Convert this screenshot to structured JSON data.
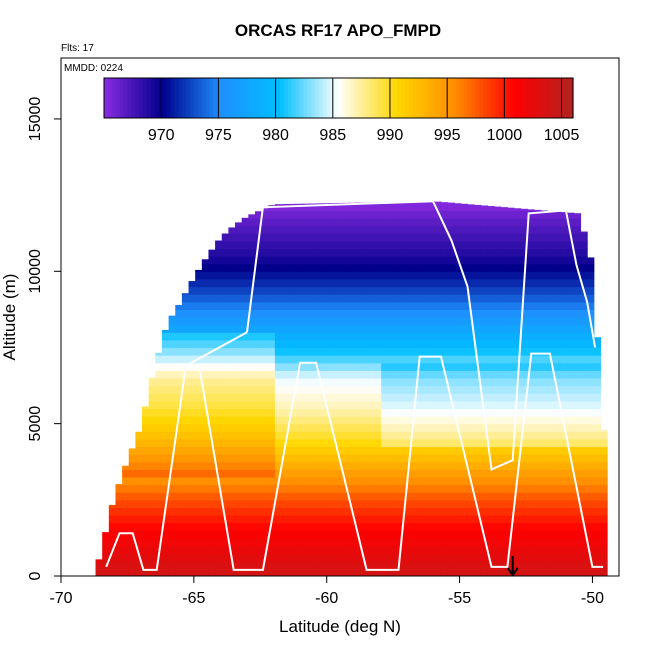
{
  "chart_data": {
    "type": "heatmap",
    "title": "ORCAS RF17 APO_FMPD",
    "note_flights": "Flts: 17",
    "note_date": "MMDD: 0224",
    "xlabel": "Latitude (deg N)",
    "ylabel": "Altitude (m)",
    "xlim": [
      -70,
      -49
    ],
    "ylim": [
      0,
      17000
    ],
    "xticks": [
      -70,
      -65,
      -60,
      -55,
      -50
    ],
    "xtick_labels": [
      "-70",
      "-65",
      "-60",
      "-55",
      "-50"
    ],
    "yticks": [
      0,
      5000,
      10000,
      15000
    ],
    "ytick_labels": [
      "0",
      "5000",
      "10000",
      "15000"
    ],
    "grid": false,
    "colorbar": {
      "placement": "top",
      "range": [
        965,
        1006
      ],
      "ticks": [
        970,
        975,
        980,
        985,
        990,
        995,
        1000,
        1005
      ],
      "tick_labels": [
        "970",
        "975",
        "980",
        "985",
        "990",
        "995",
        "1000",
        "1005"
      ],
      "colors": [
        "#8a2be2",
        "#00008b",
        "#1e90ff",
        "#00bfff",
        "#ffffff",
        "#ffd700",
        "#ff8c00",
        "#ff0000",
        "#b22222"
      ]
    },
    "field": {
      "description_keys": [
        "latitude",
        "altitude",
        "APO_FMPD"
      ],
      "profiles": [
        {
          "lat": -68.7,
          "top_alt": 100
        },
        {
          "lat": -68.0,
          "top_alt": 2600
        },
        {
          "lat": -67.5,
          "top_alt": 3800
        },
        {
          "lat": -67.0,
          "top_alt": 4900
        },
        {
          "lat": -66.5,
          "top_alt": 6800
        },
        {
          "lat": -66.0,
          "top_alt": 8300
        },
        {
          "lat": -65.5,
          "top_alt": 9000
        },
        {
          "lat": -65.0,
          "top_alt": 9800
        },
        {
          "lat": -64.5,
          "top_alt": 10500
        },
        {
          "lat": -64.0,
          "top_alt": 11100
        },
        {
          "lat": -63.5,
          "top_alt": 11500
        },
        {
          "lat": -63.0,
          "top_alt": 11800
        },
        {
          "lat": -62.0,
          "top_alt": 12200
        },
        {
          "lat": -56.0,
          "top_alt": 12300
        },
        {
          "lat": -50.5,
          "top_alt": 11900
        },
        {
          "lat": -50.0,
          "top_alt": 10200
        },
        {
          "lat": -49.6,
          "top_alt": 4800
        }
      ],
      "vertical_levels": [
        {
          "alt": 0,
          "value": 1004
        },
        {
          "alt": 1500,
          "value": 1001
        },
        {
          "alt": 2500,
          "value": 998
        },
        {
          "alt": 3500,
          "value": 994
        },
        {
          "alt": 4500,
          "value": 990
        },
        {
          "alt": 5500,
          "value": 987
        },
        {
          "alt": 6500,
          "value": 985
        },
        {
          "alt": 7500,
          "value": 980
        },
        {
          "alt": 8500,
          "value": 976
        },
        {
          "alt": 9500,
          "value": 972
        },
        {
          "alt": 10500,
          "value": 969
        },
        {
          "alt": 11500,
          "value": 967
        },
        {
          "alt": 12300,
          "value": 965
        }
      ]
    },
    "flight_track": [
      [
        -68.3,
        300
      ],
      [
        -67.8,
        1400
      ],
      [
        -67.3,
        1400
      ],
      [
        -66.9,
        200
      ],
      [
        -66.4,
        200
      ],
      [
        -65.3,
        6900
      ],
      [
        -64.8,
        6900
      ],
      [
        -63.5,
        200
      ],
      [
        -62.4,
        200
      ],
      [
        -61.0,
        7000
      ],
      [
        -60.4,
        7000
      ],
      [
        -58.5,
        200
      ],
      [
        -57.3,
        200
      ],
      [
        -56.5,
        7200
      ],
      [
        -55.7,
        7200
      ],
      [
        -53.8,
        300
      ],
      [
        -53.2,
        300
      ],
      [
        -52.3,
        7300
      ],
      [
        -51.6,
        7300
      ],
      [
        -50.0,
        300
      ],
      [
        -49.6,
        300
      ]
    ],
    "flight_track_high": [
      [
        -63.0,
        8000
      ],
      [
        -62.4,
        12100
      ],
      [
        -56.0,
        12300
      ],
      [
        -55.3,
        11000
      ],
      [
        -54.7,
        9500
      ],
      [
        -53.8,
        3500
      ],
      [
        -53.0,
        3800
      ],
      [
        -52.4,
        11900
      ],
      [
        -51.0,
        12000
      ],
      [
        -50.6,
        10200
      ],
      [
        -50.2,
        9000
      ],
      [
        -49.9,
        7500
      ]
    ],
    "flight_track_low": [
      [
        -65.3,
        6900
      ],
      [
        -63.0,
        8000
      ]
    ],
    "marker": {
      "lat": -53.0,
      "type": "arrow-down"
    }
  }
}
